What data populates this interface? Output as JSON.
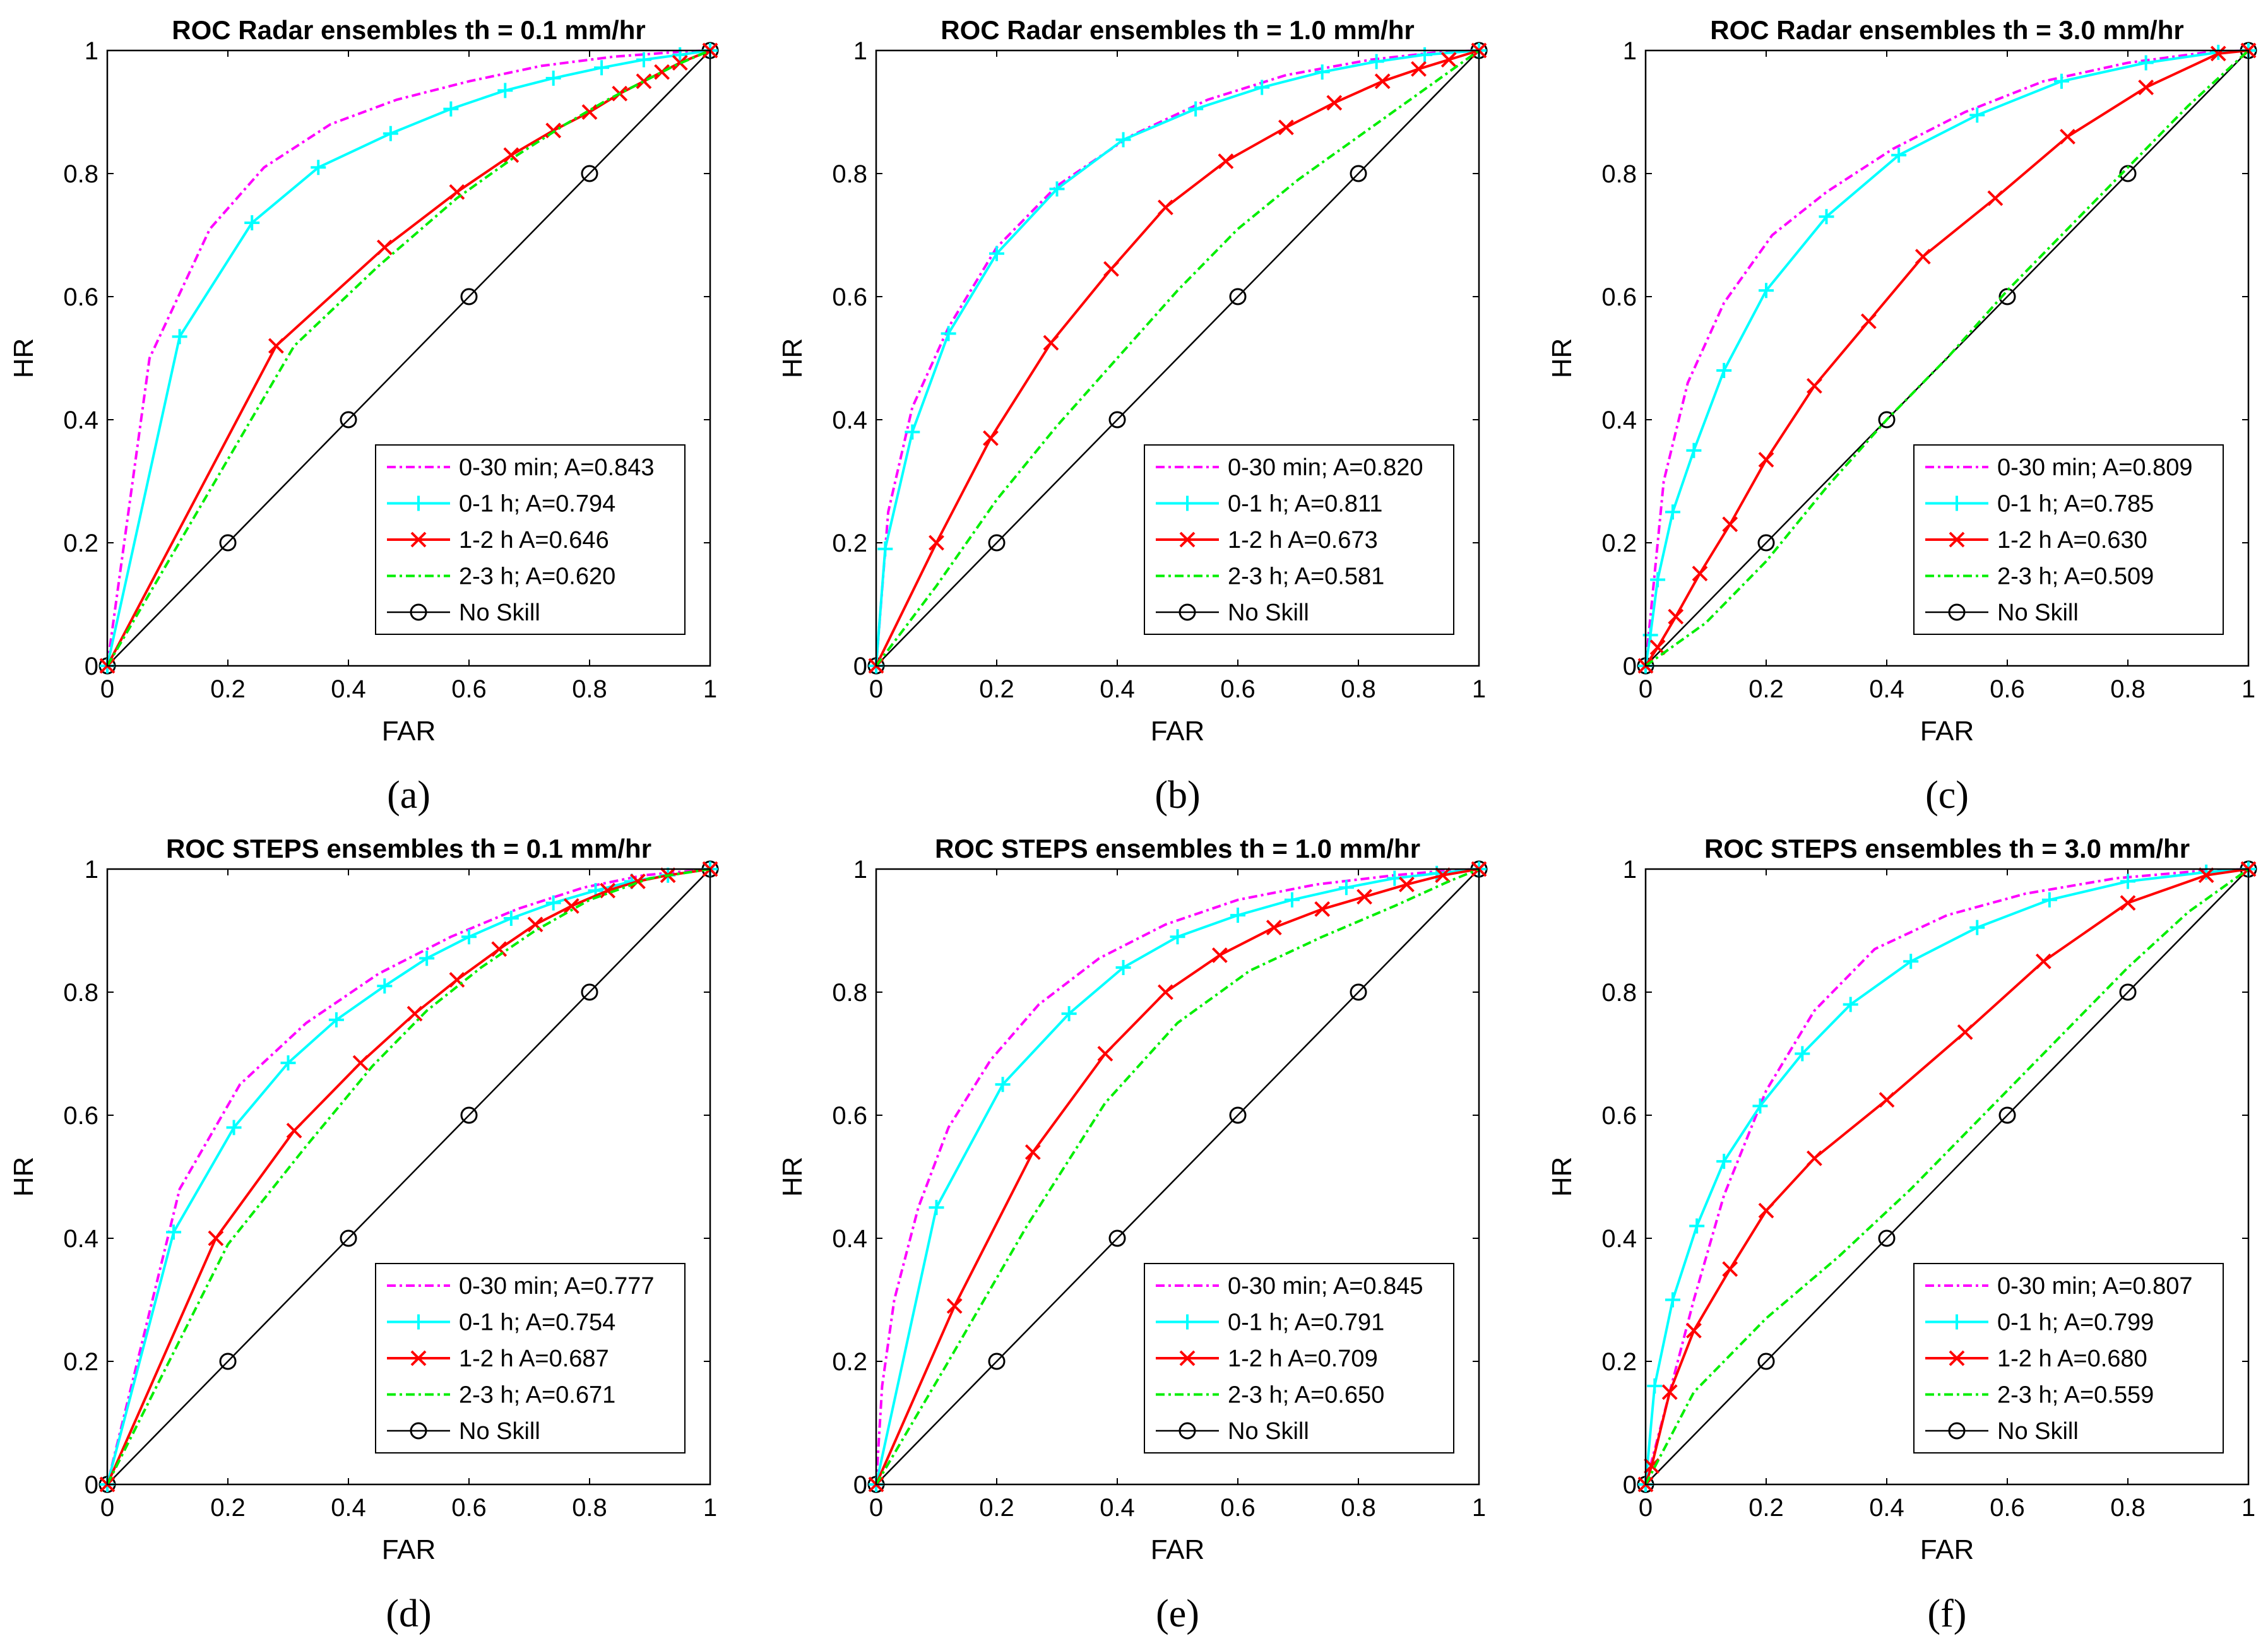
{
  "figure": {
    "background": "#ffffff"
  },
  "styles": {
    "0-30 min": {
      "color": "#ff00ff",
      "dash": "14,6,4,6",
      "marker": "none"
    },
    "0-1 h": {
      "color": "#00ffff",
      "dash": "",
      "marker": "plus"
    },
    "1-2 h": {
      "color": "#ff0000",
      "dash": "",
      "marker": "x"
    },
    "2-3 h": {
      "color": "#00ee00",
      "dash": "14,6,4,6",
      "marker": "none"
    },
    "No Skill": {
      "color": "#000000",
      "dash": "",
      "marker": "circle"
    }
  },
  "chart_data": [
    {
      "type": "line",
      "label": "(a)",
      "title": "ROC Radar ensembles th = 0.1 mm/hr",
      "xlabel": "FAR",
      "ylabel": "HR",
      "xlim": [
        0,
        1
      ],
      "ylim": [
        0,
        1
      ],
      "xticks": [
        "0",
        "0.2",
        "0.4",
        "0.6",
        "0.8",
        "1"
      ],
      "yticks": [
        "0",
        "0.2",
        "0.4",
        "0.6",
        "0.8",
        "1"
      ],
      "legend_position": "bottom-right",
      "series": [
        {
          "name": "0-30 min",
          "legend": "0-30 min; A=0.843",
          "x": [
            0,
            0.07,
            0.17,
            0.26,
            0.37,
            0.48,
            0.6,
            0.72,
            0.84,
            0.95,
            1
          ],
          "y": [
            0,
            0.5,
            0.71,
            0.81,
            0.88,
            0.92,
            0.95,
            0.975,
            0.99,
            0.998,
            1
          ]
        },
        {
          "name": "0-1 h",
          "legend": "0-1 h; A=0.794",
          "x": [
            0,
            0.12,
            0.24,
            0.35,
            0.47,
            0.57,
            0.66,
            0.74,
            0.82,
            0.89,
            0.95,
            1
          ],
          "y": [
            0,
            0.535,
            0.72,
            0.81,
            0.865,
            0.905,
            0.935,
            0.955,
            0.972,
            0.985,
            0.993,
            1
          ]
        },
        {
          "name": "1-2 h",
          "legend": "1-2 h A=0.646",
          "x": [
            0,
            0.28,
            0.46,
            0.58,
            0.67,
            0.74,
            0.8,
            0.85,
            0.89,
            0.92,
            0.95,
            1
          ],
          "y": [
            0,
            0.52,
            0.68,
            0.77,
            0.83,
            0.87,
            0.9,
            0.93,
            0.95,
            0.965,
            0.98,
            1
          ]
        },
        {
          "name": "2-3 h",
          "legend": "2-3 h; A=0.620",
          "x": [
            0,
            0.31,
            0.45,
            0.58,
            0.68,
            0.76,
            0.83,
            0.89,
            0.94,
            1
          ],
          "y": [
            0,
            0.52,
            0.65,
            0.76,
            0.83,
            0.88,
            0.92,
            0.95,
            0.975,
            1
          ]
        },
        {
          "name": "No Skill",
          "legend": "No Skill",
          "x": [
            0,
            0.2,
            0.4,
            0.6,
            0.8,
            1
          ],
          "y": [
            0,
            0.2,
            0.4,
            0.6,
            0.8,
            1
          ]
        }
      ]
    },
    {
      "type": "line",
      "label": "(b)",
      "title": "ROC Radar ensembles th = 1.0 mm/hr",
      "xlabel": "FAR",
      "ylabel": "HR",
      "xlim": [
        0,
        1
      ],
      "ylim": [
        0,
        1
      ],
      "xticks": [
        "0",
        "0.2",
        "0.4",
        "0.6",
        "0.8",
        "1"
      ],
      "yticks": [
        "0",
        "0.2",
        "0.4",
        "0.6",
        "0.8",
        "1"
      ],
      "legend_position": "bottom-right",
      "series": [
        {
          "name": "0-30 min",
          "legend": "0-30 min; A=0.820",
          "x": [
            0,
            0.02,
            0.06,
            0.12,
            0.2,
            0.3,
            0.42,
            0.55,
            0.68,
            0.82,
            0.93,
            1
          ],
          "y": [
            0,
            0.25,
            0.42,
            0.55,
            0.68,
            0.78,
            0.86,
            0.92,
            0.96,
            0.985,
            0.997,
            1
          ]
        },
        {
          "name": "0-1 h",
          "legend": "0-1 h; A=0.811",
          "x": [
            0,
            0.015,
            0.06,
            0.12,
            0.2,
            0.3,
            0.41,
            0.53,
            0.64,
            0.74,
            0.83,
            0.91,
            1
          ],
          "y": [
            0,
            0.19,
            0.38,
            0.54,
            0.67,
            0.775,
            0.855,
            0.905,
            0.94,
            0.965,
            0.982,
            0.993,
            1
          ]
        },
        {
          "name": "1-2 h",
          "legend": "1-2 h A=0.673",
          "x": [
            0,
            0.1,
            0.19,
            0.29,
            0.39,
            0.48,
            0.58,
            0.68,
            0.76,
            0.84,
            0.9,
            0.95,
            1
          ],
          "y": [
            0,
            0.2,
            0.37,
            0.525,
            0.645,
            0.745,
            0.82,
            0.875,
            0.915,
            0.95,
            0.97,
            0.985,
            1
          ]
        },
        {
          "name": "2-3 h",
          "legend": "2-3 h; A=0.581",
          "x": [
            0,
            0.1,
            0.2,
            0.3,
            0.4,
            0.5,
            0.6,
            0.7,
            0.8,
            0.9,
            1
          ],
          "y": [
            0,
            0.13,
            0.27,
            0.39,
            0.5,
            0.61,
            0.71,
            0.79,
            0.86,
            0.93,
            1
          ]
        },
        {
          "name": "No Skill",
          "legend": "No Skill",
          "x": [
            0,
            0.2,
            0.4,
            0.6,
            0.8,
            1
          ],
          "y": [
            0,
            0.2,
            0.4,
            0.6,
            0.8,
            1
          ]
        }
      ]
    },
    {
      "type": "line",
      "label": "(c)",
      "title": "ROC Radar ensembles th = 3.0 mm/hr",
      "xlabel": "FAR",
      "ylabel": "HR",
      "xlim": [
        0,
        1
      ],
      "ylim": [
        0,
        1
      ],
      "xticks": [
        "0",
        "0.2",
        "0.4",
        "0.6",
        "0.8",
        "1"
      ],
      "yticks": [
        "0",
        "0.2",
        "0.4",
        "0.6",
        "0.8",
        "1"
      ],
      "legend_position": "bottom-right",
      "series": [
        {
          "name": "0-30 min",
          "legend": "0-30 min; A=0.809",
          "x": [
            0,
            0.03,
            0.07,
            0.13,
            0.21,
            0.3,
            0.41,
            0.53,
            0.66,
            0.8,
            0.93,
            1
          ],
          "y": [
            0,
            0.3,
            0.46,
            0.59,
            0.7,
            0.77,
            0.84,
            0.9,
            0.95,
            0.98,
            0.997,
            1
          ]
        },
        {
          "name": "0-1 h",
          "legend": "0-1 h; A=0.785",
          "x": [
            0,
            0.008,
            0.02,
            0.045,
            0.08,
            0.13,
            0.2,
            0.3,
            0.42,
            0.55,
            0.69,
            0.83,
            0.95,
            1
          ],
          "y": [
            0,
            0.05,
            0.14,
            0.25,
            0.35,
            0.48,
            0.61,
            0.73,
            0.83,
            0.895,
            0.95,
            0.98,
            0.997,
            1
          ]
        },
        {
          "name": "1-2 h",
          "legend": "1-2 h A=0.630",
          "x": [
            0,
            0.02,
            0.05,
            0.09,
            0.14,
            0.2,
            0.28,
            0.37,
            0.46,
            0.58,
            0.7,
            0.83,
            0.95,
            1
          ],
          "y": [
            0,
            0.03,
            0.08,
            0.15,
            0.23,
            0.335,
            0.455,
            0.56,
            0.665,
            0.76,
            0.86,
            0.94,
            0.995,
            1
          ]
        },
        {
          "name": "2-3 h",
          "legend": "2-3 h; A=0.509",
          "x": [
            0,
            0.1,
            0.2,
            0.3,
            0.4,
            0.5,
            0.6,
            0.7,
            0.8,
            0.9,
            1
          ],
          "y": [
            0,
            0.07,
            0.17,
            0.29,
            0.4,
            0.5,
            0.61,
            0.71,
            0.81,
            0.91,
            1
          ]
        },
        {
          "name": "No Skill",
          "legend": "No Skill",
          "x": [
            0,
            0.2,
            0.4,
            0.6,
            0.8,
            1
          ],
          "y": [
            0,
            0.2,
            0.4,
            0.6,
            0.8,
            1
          ]
        }
      ]
    },
    {
      "type": "line",
      "label": "(d)",
      "title": "ROC STEPS ensembles th = 0.1 mm/hr",
      "xlabel": "FAR",
      "ylabel": "HR",
      "xlim": [
        0,
        1
      ],
      "ylim": [
        0,
        1
      ],
      "xticks": [
        "0",
        "0.2",
        "0.4",
        "0.6",
        "0.8",
        "1"
      ],
      "yticks": [
        "0",
        "0.2",
        "0.4",
        "0.6",
        "0.8",
        "1"
      ],
      "legend_position": "bottom-right",
      "series": [
        {
          "name": "0-30 min",
          "legend": "0-30 min; A=0.777",
          "x": [
            0,
            0.12,
            0.22,
            0.33,
            0.45,
            0.57,
            0.68,
            0.79,
            0.89,
            1
          ],
          "y": [
            0,
            0.48,
            0.65,
            0.75,
            0.83,
            0.89,
            0.935,
            0.97,
            0.99,
            1
          ]
        },
        {
          "name": "0-1 h",
          "legend": "0-1 h; A=0.754",
          "x": [
            0,
            0.11,
            0.21,
            0.3,
            0.38,
            0.46,
            0.53,
            0.6,
            0.67,
            0.74,
            0.81,
            0.87,
            0.93,
            1
          ],
          "y": [
            0,
            0.41,
            0.58,
            0.685,
            0.755,
            0.81,
            0.855,
            0.89,
            0.92,
            0.945,
            0.965,
            0.98,
            0.99,
            1
          ]
        },
        {
          "name": "1-2 h",
          "legend": "1-2 h A=0.687",
          "x": [
            0,
            0.18,
            0.31,
            0.42,
            0.51,
            0.58,
            0.65,
            0.71,
            0.77,
            0.83,
            0.88,
            0.93,
            1
          ],
          "y": [
            0,
            0.4,
            0.575,
            0.685,
            0.765,
            0.82,
            0.87,
            0.91,
            0.94,
            0.965,
            0.98,
            0.99,
            1
          ]
        },
        {
          "name": "2-3 h",
          "legend": "2-3 h; A=0.671",
          "x": [
            0,
            0.2,
            0.33,
            0.44,
            0.53,
            0.62,
            0.71,
            0.8,
            0.9,
            1
          ],
          "y": [
            0,
            0.39,
            0.55,
            0.68,
            0.77,
            0.84,
            0.9,
            0.95,
            0.985,
            1
          ]
        },
        {
          "name": "No Skill",
          "legend": "No Skill",
          "x": [
            0,
            0.2,
            0.4,
            0.6,
            0.8,
            1
          ],
          "y": [
            0,
            0.2,
            0.4,
            0.6,
            0.8,
            1
          ]
        }
      ]
    },
    {
      "type": "line",
      "label": "(e)",
      "title": "ROC STEPS ensembles th = 1.0 mm/hr",
      "xlabel": "FAR",
      "ylabel": "HR",
      "xlim": [
        0,
        1
      ],
      "ylim": [
        0,
        1
      ],
      "xticks": [
        "0",
        "0.2",
        "0.4",
        "0.6",
        "0.8",
        "1"
      ],
      "yticks": [
        "0",
        "0.2",
        "0.4",
        "0.6",
        "0.8",
        "1"
      ],
      "legend_position": "bottom-right",
      "series": [
        {
          "name": "0-30 min",
          "legend": "0-30 min; A=0.845",
          "x": [
            0,
            0.01,
            0.03,
            0.07,
            0.12,
            0.19,
            0.27,
            0.37,
            0.48,
            0.6,
            0.73,
            0.86,
            0.95,
            1
          ],
          "y": [
            0,
            0.16,
            0.3,
            0.45,
            0.58,
            0.69,
            0.78,
            0.855,
            0.91,
            0.95,
            0.975,
            0.99,
            0.998,
            1
          ]
        },
        {
          "name": "0-1 h",
          "legend": "0-1 h; A=0.791",
          "x": [
            0,
            0.1,
            0.21,
            0.32,
            0.41,
            0.5,
            0.6,
            0.69,
            0.78,
            0.86,
            0.93,
            1
          ],
          "y": [
            0,
            0.45,
            0.65,
            0.765,
            0.84,
            0.89,
            0.925,
            0.95,
            0.97,
            0.985,
            0.993,
            1
          ]
        },
        {
          "name": "1-2 h",
          "legend": "1-2 h A=0.709",
          "x": [
            0,
            0.13,
            0.26,
            0.38,
            0.48,
            0.57,
            0.66,
            0.74,
            0.81,
            0.88,
            0.94,
            1
          ],
          "y": [
            0,
            0.29,
            0.54,
            0.7,
            0.8,
            0.86,
            0.905,
            0.935,
            0.955,
            0.975,
            0.99,
            1
          ]
        },
        {
          "name": "2-3 h",
          "legend": "2-3 h; A=0.650",
          "x": [
            0,
            0.12,
            0.25,
            0.38,
            0.5,
            0.62,
            0.74,
            0.86,
            0.95,
            1
          ],
          "y": [
            0,
            0.2,
            0.42,
            0.62,
            0.75,
            0.835,
            0.89,
            0.94,
            0.98,
            1
          ]
        },
        {
          "name": "No Skill",
          "legend": "No Skill",
          "x": [
            0,
            0.2,
            0.4,
            0.6,
            0.8,
            1
          ],
          "y": [
            0,
            0.2,
            0.4,
            0.6,
            0.8,
            1
          ]
        }
      ]
    },
    {
      "type": "line",
      "label": "(f)",
      "title": "ROC STEPS ensembles th = 3.0 mm/hr",
      "xlabel": "FAR",
      "ylabel": "HR",
      "xlim": [
        0,
        1
      ],
      "ylim": [
        0,
        1
      ],
      "xticks": [
        "0",
        "0.2",
        "0.4",
        "0.6",
        "0.8",
        "1"
      ],
      "yticks": [
        "0",
        "0.2",
        "0.4",
        "0.6",
        "0.8",
        "1"
      ],
      "legend_position": "bottom-right",
      "series": [
        {
          "name": "0-30 min",
          "legend": "0-30 min; A=0.807",
          "x": [
            0,
            0.04,
            0.08,
            0.13,
            0.2,
            0.28,
            0.38,
            0.5,
            0.63,
            0.78,
            0.92,
            1
          ],
          "y": [
            0,
            0.15,
            0.3,
            0.47,
            0.64,
            0.77,
            0.87,
            0.925,
            0.96,
            0.985,
            0.997,
            1
          ]
        },
        {
          "name": "0-1 h",
          "legend": "0-1 h; A=0.799",
          "x": [
            0,
            0.015,
            0.045,
            0.085,
            0.13,
            0.19,
            0.26,
            0.34,
            0.44,
            0.55,
            0.67,
            0.8,
            0.93,
            1
          ],
          "y": [
            0,
            0.16,
            0.3,
            0.42,
            0.525,
            0.615,
            0.7,
            0.78,
            0.85,
            0.905,
            0.95,
            0.98,
            0.995,
            1
          ]
        },
        {
          "name": "1-2 h",
          "legend": "1-2 h A=0.680",
          "x": [
            0,
            0.01,
            0.04,
            0.08,
            0.14,
            0.2,
            0.28,
            0.4,
            0.53,
            0.66,
            0.8,
            0.93,
            1
          ],
          "y": [
            0,
            0.03,
            0.15,
            0.25,
            0.35,
            0.445,
            0.53,
            0.625,
            0.735,
            0.85,
            0.945,
            0.99,
            1
          ]
        },
        {
          "name": "2-3 h",
          "legend": "2-3 h; A=0.559",
          "x": [
            0,
            0.08,
            0.2,
            0.32,
            0.44,
            0.56,
            0.68,
            0.8,
            0.9,
            1
          ],
          "y": [
            0,
            0.15,
            0.27,
            0.37,
            0.48,
            0.6,
            0.72,
            0.84,
            0.93,
            1
          ]
        },
        {
          "name": "No Skill",
          "legend": "No Skill",
          "x": [
            0,
            0.2,
            0.4,
            0.6,
            0.8,
            1
          ],
          "y": [
            0,
            0.2,
            0.4,
            0.6,
            0.8,
            1
          ]
        }
      ]
    }
  ]
}
